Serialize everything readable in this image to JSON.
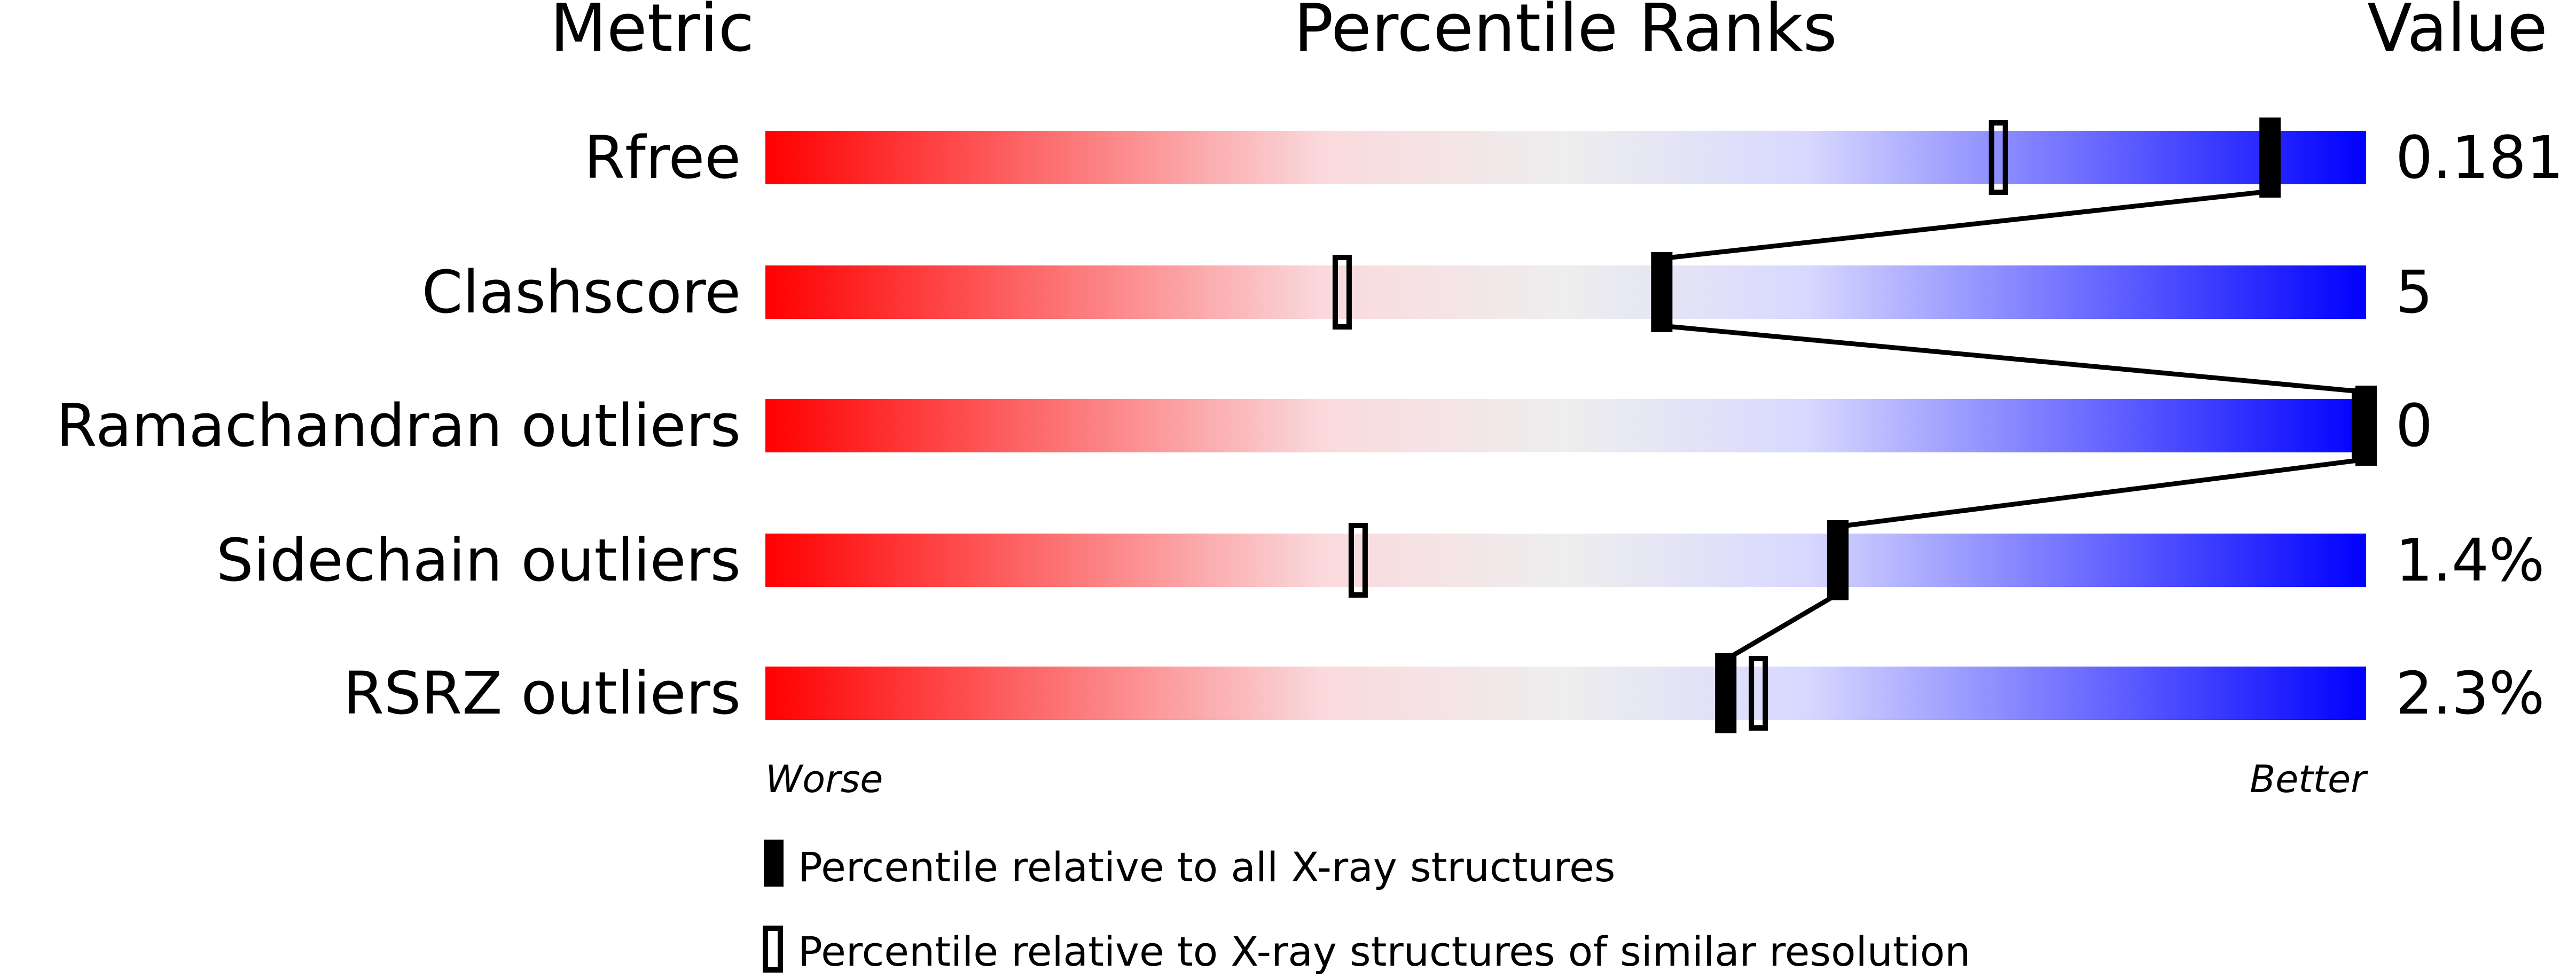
{
  "chart_data": {
    "type": "bar",
    "headers": {
      "metric": "Metric",
      "ranks": "Percentile Ranks",
      "value": "Value"
    },
    "xlim": [
      0,
      100
    ],
    "scale_labels": {
      "left": "Worse",
      "right": "Better"
    },
    "gradient_colors": [
      "#ff0000",
      "#fadadd",
      "#eeeeee",
      "#d8d8ff",
      "#0000ff"
    ],
    "metrics": [
      {
        "label": "Rfree",
        "value": "0.181",
        "percentile_all": 94,
        "percentile_similar": 77
      },
      {
        "label": "Clashscore",
        "value": "5",
        "percentile_all": 56,
        "percentile_similar": 36
      },
      {
        "label": "Ramachandran outliers",
        "value": "0",
        "percentile_all": 100,
        "percentile_similar": 100
      },
      {
        "label": "Sidechain outliers",
        "value": "1.4%",
        "percentile_all": 67,
        "percentile_similar": 37
      },
      {
        "label": "RSRZ outliers",
        "value": "2.3%",
        "percentile_all": 60,
        "percentile_similar": 62
      }
    ],
    "legend": [
      {
        "marker": "filled",
        "label": "Percentile relative to all X-ray structures"
      },
      {
        "marker": "open",
        "label": "Percentile relative to X-ray structures of similar resolution"
      }
    ]
  }
}
